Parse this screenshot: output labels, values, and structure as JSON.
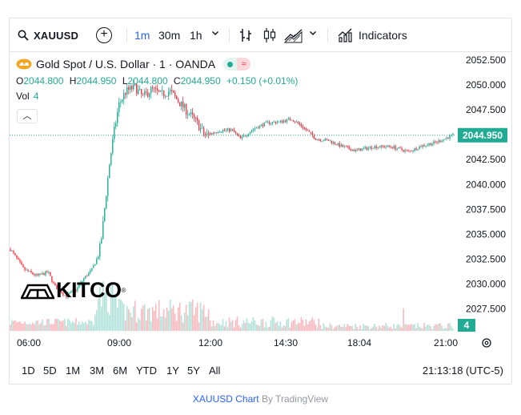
{
  "toolbar": {
    "symbol": "XAUUSD",
    "timeframes": [
      "1m",
      "30m",
      "1h"
    ],
    "active_timeframe": "1m",
    "indicators_label": "Indicators",
    "icons": [
      "search-icon",
      "plus-circle-icon",
      "chevron-down-icon",
      "bar-chart-icon",
      "candlestick-icon",
      "area-chart-icon",
      "indicators-icon"
    ]
  },
  "legend": {
    "title": "Gold Spot / U.S. Dollar · 1 · OANDA",
    "open_label": "O",
    "open": "2044.800",
    "high_label": "H",
    "high": "2044.950",
    "low_label": "L",
    "low": "2044.800",
    "close_label": "C",
    "close": "2044.950",
    "change": "+0.150 (+0.01%)",
    "vol_label": "Vol",
    "vol": "4"
  },
  "logo": {
    "text": "KITCO",
    "reg": "®"
  },
  "chart_data": {
    "type": "candlestick",
    "symbol": "XAUUSD",
    "interval": "1m",
    "price_axis_ticks": [
      "2052.500",
      "2050.000",
      "2047.500",
      "2045.000",
      "2042.500",
      "2040.000",
      "2037.500",
      "2035.000",
      "2032.500",
      "2030.000",
      "2027.500"
    ],
    "ylim": [
      2025.3,
      2053.3
    ],
    "time_axis_ticks": [
      "06:00",
      "09:00",
      "12:00",
      "14:30",
      "18:04",
      "21:00"
    ],
    "last_price": "2044.950",
    "last_volume": "4",
    "price_path": [
      {
        "t": 0.0,
        "p": 2033.5
      },
      {
        "t": 0.03,
        "p": 2031.5
      },
      {
        "t": 0.06,
        "p": 2030.8
      },
      {
        "t": 0.085,
        "p": 2031.2
      },
      {
        "t": 0.1,
        "p": 2029.8
      },
      {
        "t": 0.125,
        "p": 2028.8
      },
      {
        "t": 0.15,
        "p": 2029.5
      },
      {
        "t": 0.165,
        "p": 2030.5
      },
      {
        "t": 0.185,
        "p": 2031.5
      },
      {
        "t": 0.2,
        "p": 2033.0
      },
      {
        "t": 0.207,
        "p": 2035.0
      },
      {
        "t": 0.215,
        "p": 2038.5
      },
      {
        "t": 0.225,
        "p": 2042.5
      },
      {
        "t": 0.235,
        "p": 2045.5
      },
      {
        "t": 0.245,
        "p": 2048.0
      },
      {
        "t": 0.26,
        "p": 2049.3
      },
      {
        "t": 0.28,
        "p": 2049.8
      },
      {
        "t": 0.3,
        "p": 2048.8
      },
      {
        "t": 0.32,
        "p": 2049.6
      },
      {
        "t": 0.34,
        "p": 2049.0
      },
      {
        "t": 0.36,
        "p": 2049.4
      },
      {
        "t": 0.39,
        "p": 2047.8
      },
      {
        "t": 0.42,
        "p": 2046.3
      },
      {
        "t": 0.44,
        "p": 2044.9
      },
      {
        "t": 0.47,
        "p": 2045.4
      },
      {
        "t": 0.5,
        "p": 2045.5
      },
      {
        "t": 0.52,
        "p": 2044.6
      },
      {
        "t": 0.55,
        "p": 2045.6
      },
      {
        "t": 0.58,
        "p": 2046.2
      },
      {
        "t": 0.61,
        "p": 2046.3
      },
      {
        "t": 0.635,
        "p": 2046.6
      },
      {
        "t": 0.66,
        "p": 2045.8
      },
      {
        "t": 0.69,
        "p": 2044.6
      },
      {
        "t": 0.72,
        "p": 2044.4
      },
      {
        "t": 0.75,
        "p": 2043.8
      },
      {
        "t": 0.78,
        "p": 2043.4
      },
      {
        "t": 0.82,
        "p": 2043.8
      },
      {
        "t": 0.86,
        "p": 2043.8
      },
      {
        "t": 0.9,
        "p": 2043.3
      },
      {
        "t": 0.93,
        "p": 2043.9
      },
      {
        "t": 0.96,
        "p": 2044.2
      },
      {
        "t": 1.0,
        "p": 2044.95
      }
    ],
    "colors": {
      "up": "#22ab94",
      "down": "#f23645",
      "last_price": "#22ab94"
    }
  },
  "range_bar": {
    "ranges": [
      "1D",
      "5D",
      "1M",
      "3M",
      "6M",
      "YTD",
      "1Y",
      "5Y",
      "All"
    ],
    "clock": "21:13:18 (UTC-5)"
  },
  "attribution": {
    "link": "XAUUSD Chart",
    "by": "By TradingView"
  }
}
